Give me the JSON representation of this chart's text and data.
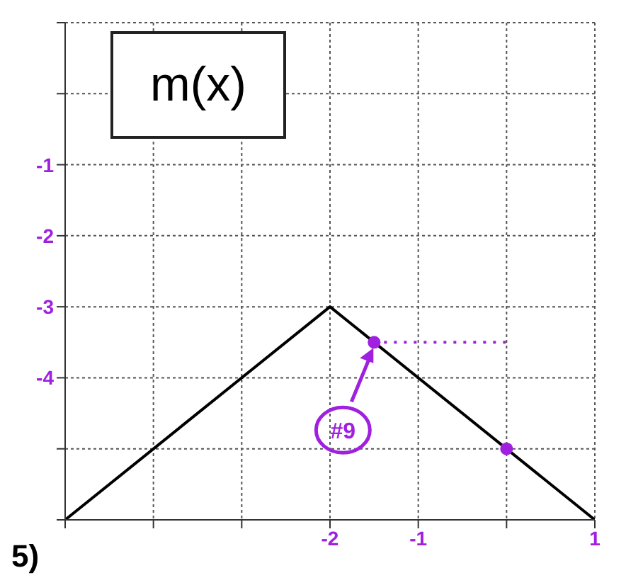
{
  "chart_data": {
    "type": "line",
    "title": "m(x)",
    "series": [
      {
        "color": "#000000",
        "x": [
          -5,
          -2,
          1
        ],
        "values": [
          -6,
          -3,
          -6
        ],
        "marker": "none",
        "line_style": "solid"
      },
      {
        "color": "#a020e0",
        "x": [
          -1.5,
          0
        ],
        "values": [
          -3.5,
          -3.5
        ],
        "marker": "none",
        "line_style": "dotted"
      },
      {
        "type": "scatter",
        "color": "#a020e0",
        "x": [
          -1.5,
          0
        ],
        "values": [
          -3.5,
          -5
        ],
        "marker": "circle"
      }
    ],
    "xlim": [
      -5,
      1
    ],
    "ylim": [
      -6,
      1
    ],
    "xticks": [
      {
        "value": -5,
        "label": null
      },
      {
        "value": -4,
        "label": null
      },
      {
        "value": -3,
        "label": null
      },
      -2,
      -1,
      {
        "value": 0,
        "label": null
      },
      1
    ],
    "yticks": [
      {
        "value": -6,
        "label": null
      },
      {
        "value": -5,
        "label": null
      },
      -4,
      -3,
      -2,
      -1,
      {
        "value": 0,
        "label": null
      },
      {
        "value": 1,
        "label": null
      }
    ],
    "annotations": [
      {
        "text": "#9",
        "x": -1.5,
        "y": -3.5
      },
      "5)"
    ],
    "grid": true
  }
}
